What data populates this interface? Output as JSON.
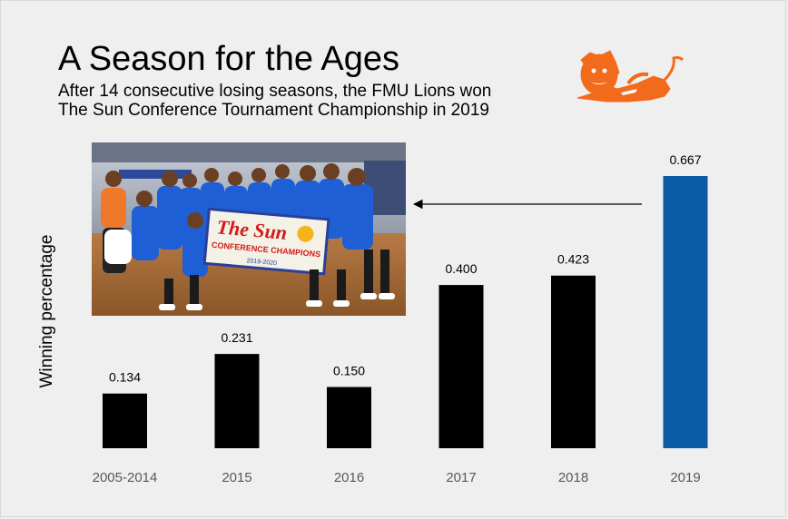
{
  "chart_data": {
    "type": "bar",
    "title": "A Season for the Ages",
    "subtitle_lines": [
      "After 14 consecutive losing seasons, the FMU Lions won",
      "The Sun Conference Tournament Championship in 2019"
    ],
    "xlabel": "",
    "ylabel": "Winning percentage",
    "categories": [
      "2005-2014",
      "2015",
      "2016",
      "2017",
      "2018",
      "2019"
    ],
    "values": [
      0.134,
      0.231,
      0.15,
      0.4,
      0.423,
      0.667
    ],
    "value_labels": [
      "0.134",
      "0.231",
      "0.150",
      "0.400",
      "0.423",
      "0.667"
    ],
    "ylim": [
      0,
      0.7
    ],
    "grid": false,
    "legend": "none",
    "bar_color": "#000000",
    "highlight_color": "#0a5aa6",
    "highlight_index": 5
  },
  "photo": {
    "banner_title": "The Sun",
    "banner_subtitle": "CONFERENCE CHAMPIONS",
    "banner_detail": "2019-2020"
  },
  "colors": {
    "background": "#efefef",
    "lion": "#f26a1b"
  }
}
